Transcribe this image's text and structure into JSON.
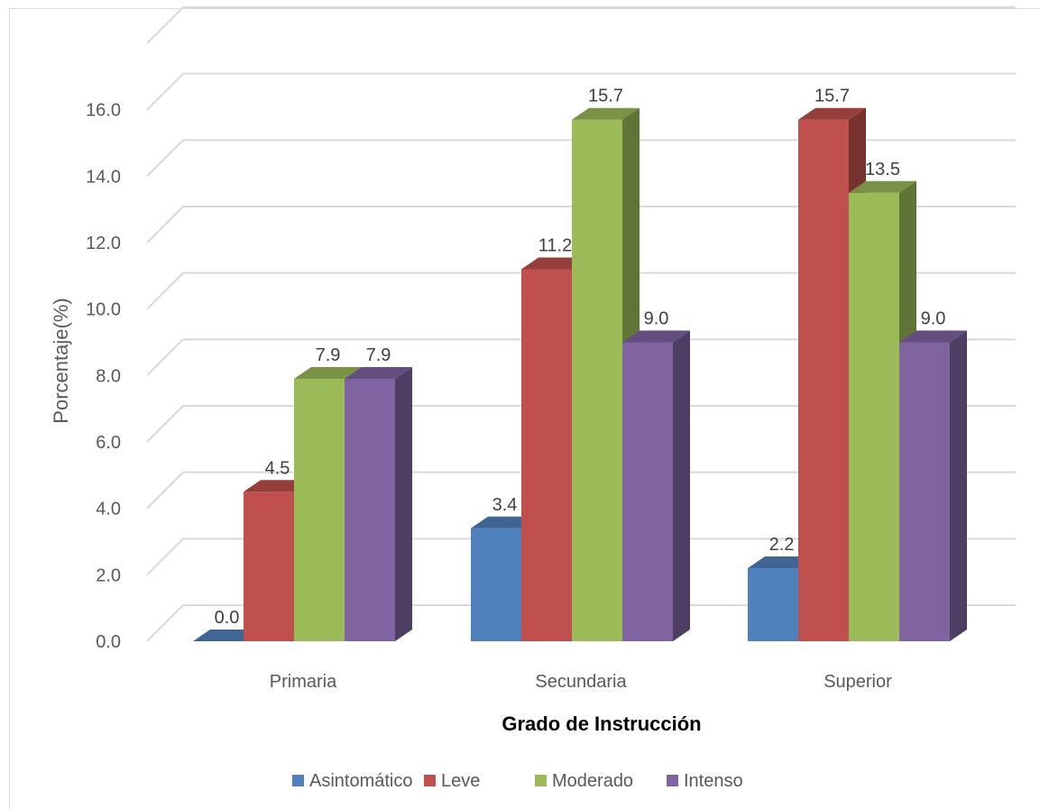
{
  "chart_data": {
    "type": "bar",
    "style": "3d-clustered-column",
    "categories": [
      "Primaria",
      "Secundaria",
      "Superior"
    ],
    "series": [
      {
        "name": "Asintomático",
        "values": [
          0.0,
          3.4,
          2.2
        ],
        "color": "#4F81BD"
      },
      {
        "name": "Leve",
        "values": [
          4.5,
          11.2,
          15.7
        ],
        "color": "#C0504D"
      },
      {
        "name": "Moderado",
        "values": [
          7.9,
          15.7,
          13.5
        ],
        "color": "#9BBB59"
      },
      {
        "name": "Intenso",
        "values": [
          7.9,
          9.0,
          9.0
        ],
        "color": "#8064A2"
      }
    ],
    "data_labels": [
      [
        "0.0",
        "3.4",
        "2.2"
      ],
      [
        "4.5",
        "11.2",
        "15.7"
      ],
      [
        "7.9",
        "15.7",
        "13.5"
      ],
      [
        "7.9",
        "9.0",
        "9.0"
      ]
    ],
    "yticks": [
      "0.0",
      "2.0",
      "4.0",
      "6.0",
      "8.0",
      "10.0",
      "12.0",
      "14.0",
      "16.0"
    ],
    "ylim": [
      0,
      18
    ],
    "ylabel": "Porcentaje(%)",
    "xlabel": "Grado de Instrucción",
    "grid": true,
    "legend_position": "bottom"
  }
}
